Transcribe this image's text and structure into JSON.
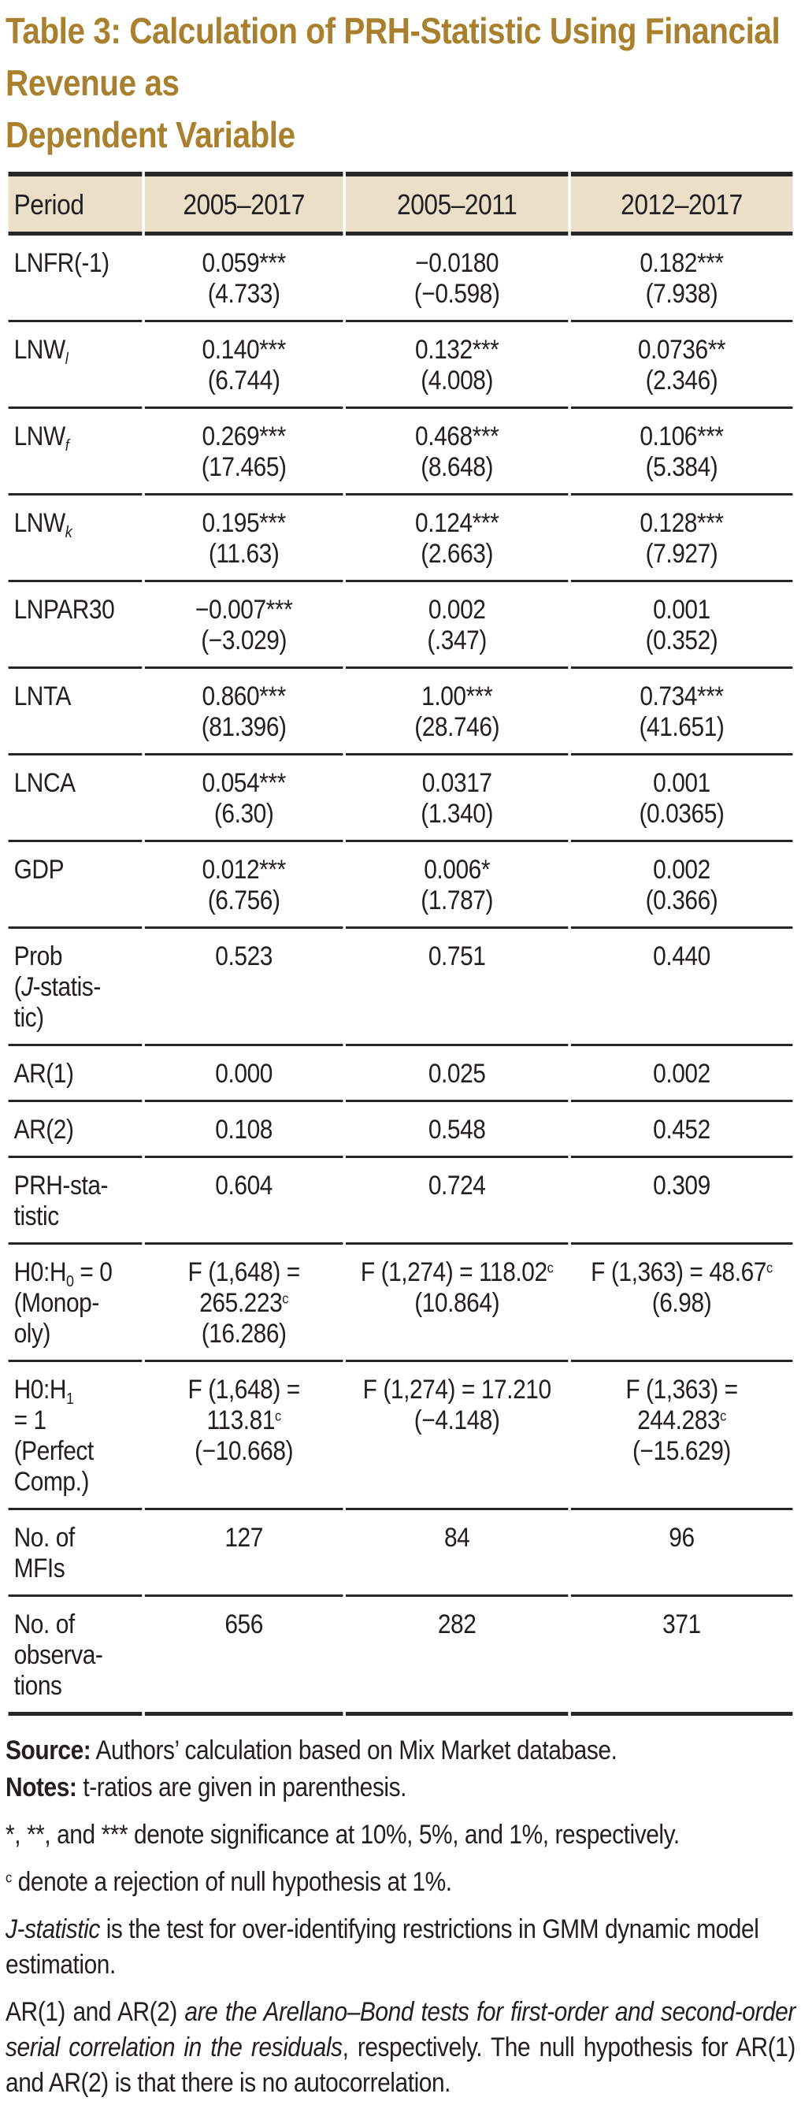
{
  "title": {
    "line1": "Table 3: Calculation of PRH-Statistic Using Financial Revenue as",
    "line2": "Dependent Variable",
    "full": "Table 3: Calculation of PRH-Statistic Using Financial Revenue as Dependent Variable"
  },
  "colors": {
    "title_text": "#A8802E",
    "header_background": "#ECDFC9",
    "body_text": "#231F20",
    "rule": "#262626",
    "page_background": "#FFFFFF"
  },
  "table": {
    "columns": [
      "Period",
      "2005–2017",
      "2005–2011",
      "2012–2017"
    ],
    "rows": [
      {
        "label": "LNFR(-1)",
        "cells": [
          [
            "0.059***",
            "(4.733)"
          ],
          [
            "−0.0180",
            "(−0.598)"
          ],
          [
            "0.182***",
            "(7.938)"
          ]
        ]
      },
      {
        "label": "LNW<sub><i>l</i></sub>",
        "cells": [
          [
            "0.140***",
            "(6.744)"
          ],
          [
            "0.132***",
            "(4.008)"
          ],
          [
            "0.0736**",
            "(2.346)"
          ]
        ]
      },
      {
        "label": "LNW<sub><i>f</i></sub>",
        "cells": [
          [
            "0.269***",
            "(17.465)"
          ],
          [
            "0.468***",
            "(8.648)"
          ],
          [
            "0.106***",
            "(5.384)"
          ]
        ]
      },
      {
        "label": "LNW<sub><i>k</i></sub>",
        "cells": [
          [
            "0.195***",
            "(11.63)"
          ],
          [
            "0.124***",
            "(2.663)"
          ],
          [
            "0.128***",
            "(7.927)"
          ]
        ]
      },
      {
        "label": "LNPAR30",
        "cells": [
          [
            "−0.007***",
            "(−3.029)"
          ],
          [
            "0.002",
            "(.347)"
          ],
          [
            "0.001",
            "(0.352)"
          ]
        ]
      },
      {
        "label": "LNTA",
        "cells": [
          [
            "0.860***",
            "(81.396)"
          ],
          [
            "1.00***",
            "(28.746)"
          ],
          [
            "0.734***",
            "(41.651)"
          ]
        ]
      },
      {
        "label": "LNCA",
        "cells": [
          [
            "0.054***",
            "(6.30)"
          ],
          [
            "0.0317",
            "(1.340)"
          ],
          [
            "0.001",
            "(0.0365)"
          ]
        ]
      },
      {
        "label": "GDP",
        "cells": [
          [
            "0.012***",
            "(6.756)"
          ],
          [
            "0.006*",
            "(1.787)"
          ],
          [
            "0.002",
            "(0.366)"
          ]
        ]
      },
      {
        "label": "Prob<br>(<i>J</i>-statis-<br>tic)",
        "cells": [
          [
            "0.523"
          ],
          [
            "0.751"
          ],
          [
            "0.440"
          ]
        ]
      },
      {
        "label": "AR(1)",
        "cells": [
          [
            "0.000"
          ],
          [
            "0.025"
          ],
          [
            "0.002"
          ]
        ]
      },
      {
        "label": "AR(2)",
        "cells": [
          [
            "0.108"
          ],
          [
            "0.548"
          ],
          [
            "0.452"
          ]
        ]
      },
      {
        "label": "PRH-sta-<br>tistic",
        "cells": [
          [
            "0.604"
          ],
          [
            "0.724"
          ],
          [
            "0.309"
          ]
        ]
      },
      {
        "label": "H0:H<sub>0</sub>&nbsp;= 0<br>(Monop-<br>oly)",
        "cells": [
          [
            "F (1,648) =",
            "265.223<sup>c</sup>",
            "(16.286)"
          ],
          [
            "F (1,274) = 118.02<sup>c</sup>",
            "(10.864)"
          ],
          [
            "F (1,363) = 48.67<sup>c</sup>",
            "(6.98)"
          ]
        ]
      },
      {
        "label": "H0:H<sub>1</sub><br>= 1<br>(Perfect<br>Comp.)",
        "cells": [
          [
            "F (1,648) =",
            "113.81<sup>c</sup>",
            "(−10.668)"
          ],
          [
            "F (1,274) = 17.210",
            "(−4.148)"
          ],
          [
            "F (1,363) =",
            "244.283<sup>c</sup>",
            "(−15.629)"
          ]
        ]
      },
      {
        "label": "No. of<br>MFIs",
        "cells": [
          [
            "127"
          ],
          [
            "84"
          ],
          [
            "96"
          ]
        ]
      },
      {
        "label": "No. of<br>observa-<br>tions",
        "cells": [
          [
            "656"
          ],
          [
            "282"
          ],
          [
            "371"
          ]
        ]
      }
    ]
  },
  "notes": [
    "<b>Source:</b> Authors’ calculation based on Mix Market database.",
    "<b>Notes:</b> t-ratios are given in parenthesis.",
    "*, **, and *** denote significance at 10%, 5%, and 1%, respectively.",
    "<sup>c</sup>&nbsp;denote a rejection of null hypothesis at 1%.",
    "<i>J-statistic</i> is the test for over-identifying restrictions in GMM dynamic model estimation.",
    "AR(1) and AR(2) <i>are the Arellano–Bond tests for first-order and second-order serial correlation in the residuals</i>, respectively. The null hypothesis for AR(1) and AR(2) is that there is no autocorrelation."
  ]
}
